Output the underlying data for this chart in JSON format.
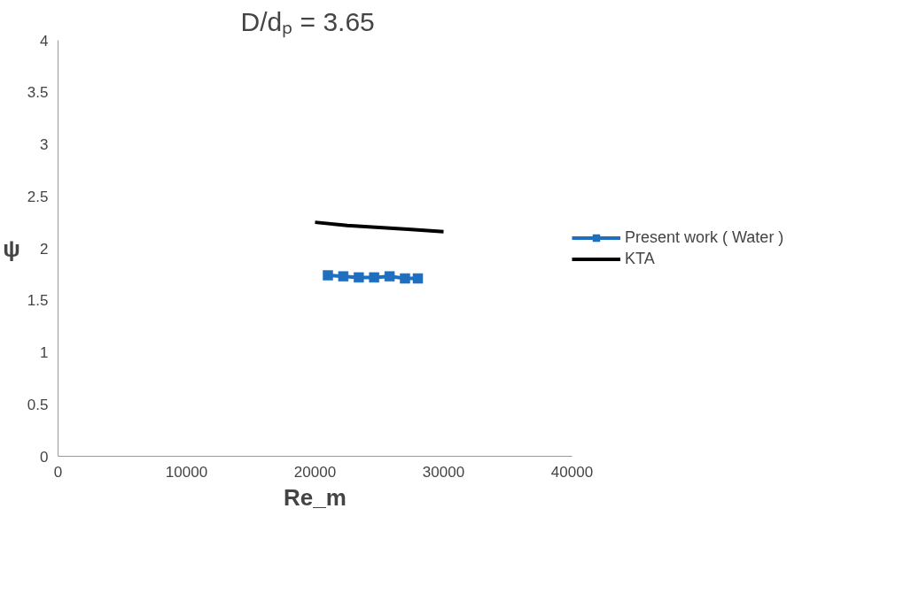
{
  "chart_data": {
    "type": "line",
    "title": "D/dₚ  =  3.65",
    "xlabel": "Re_m",
    "ylabel": "ψ",
    "xlim": [
      0,
      40000
    ],
    "xticks": [
      0,
      10000,
      20000,
      30000,
      40000
    ],
    "ylim": [
      0,
      4
    ],
    "yticks": [
      0,
      0.5,
      1,
      1.5,
      2,
      2.5,
      3,
      3.5,
      4
    ],
    "grid": false,
    "legend": "right",
    "series": [
      {
        "name": "Present work ( Water )",
        "color": "#1f6fc0",
        "marker": "square",
        "x": [
          21000,
          22200,
          23400,
          24600,
          25800,
          27000,
          28000
        ],
        "values": [
          1.74,
          1.73,
          1.72,
          1.72,
          1.73,
          1.71,
          1.71
        ]
      },
      {
        "name": "KTA",
        "color": "#000000",
        "marker": "none",
        "x": [
          20000,
          22500,
          25000,
          27500,
          30000
        ],
        "values": [
          2.25,
          2.22,
          2.2,
          2.18,
          2.16
        ]
      }
    ]
  }
}
